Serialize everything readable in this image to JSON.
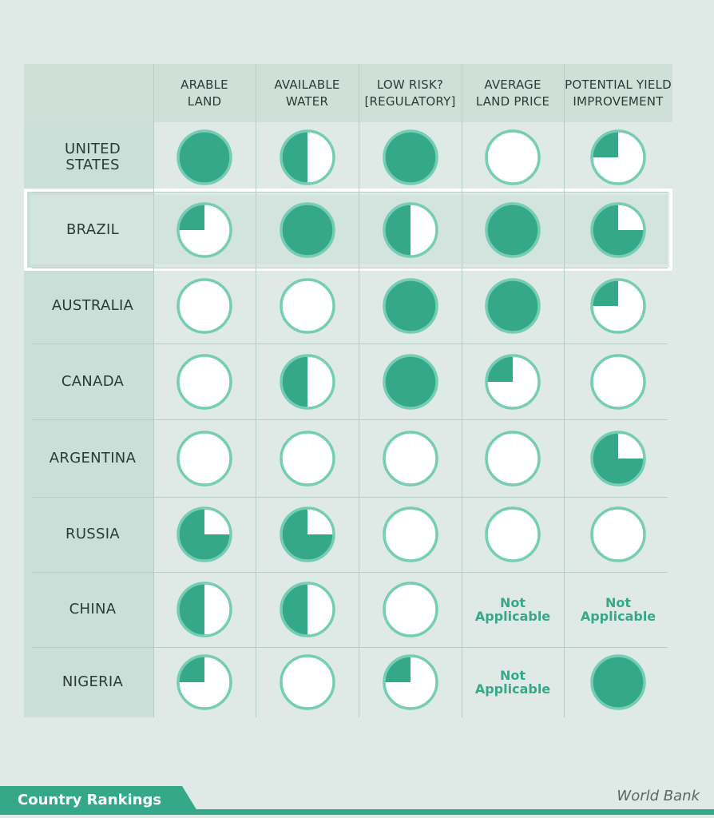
{
  "colors": {
    "fill": "#36a88a",
    "ring": "#75cdb3",
    "background": "#dfe9e5",
    "header_band": "#cfe0d9",
    "label_column": "#cadfd7",
    "text": "#2c3a36"
  },
  "columns": [
    "ARABLE\nLAND",
    "AVAILABLE\nWATER",
    "LOW RISK?\n[REGULATORY]",
    "AVERAGE\nLAND PRICE",
    "POTENTIAL YIELD\nIMPROVEMENT"
  ],
  "legend_note": "Circle fill shows rating: 0 = empty, 0.25 = quarter, 0.5 = half, 0.75 = three-quarter, 1 = full",
  "rows": [
    {
      "country": "UNITED\nSTATES",
      "ratings": [
        1,
        0.5,
        1,
        0,
        0.25
      ],
      "highlight": false
    },
    {
      "country": "BRAZIL",
      "ratings": [
        0.25,
        1,
        0.5,
        1,
        0.75
      ],
      "highlight": true
    },
    {
      "country": "AUSTRALIA",
      "ratings": [
        0,
        0,
        1,
        1,
        0.25
      ],
      "highlight": false
    },
    {
      "country": "CANADA",
      "ratings": [
        0,
        0.5,
        1,
        0.25,
        0
      ],
      "highlight": false
    },
    {
      "country": "ARGENTINA",
      "ratings": [
        0,
        0,
        0,
        0,
        0.75
      ],
      "highlight": false
    },
    {
      "country": "RUSSIA",
      "ratings": [
        0.75,
        0.75,
        0,
        0,
        0
      ],
      "highlight": false
    },
    {
      "country": "CHINA",
      "ratings": [
        0.5,
        0.5,
        0,
        "Not\nApplicable",
        "Not\nApplicable"
      ],
      "highlight": false
    },
    {
      "country": "NIGERIA",
      "ratings": [
        0.25,
        0,
        0.25,
        "Not\nApplicable",
        1
      ],
      "highlight": false
    }
  ],
  "footer": {
    "title": "Country Rankings",
    "source": "World Bank"
  }
}
